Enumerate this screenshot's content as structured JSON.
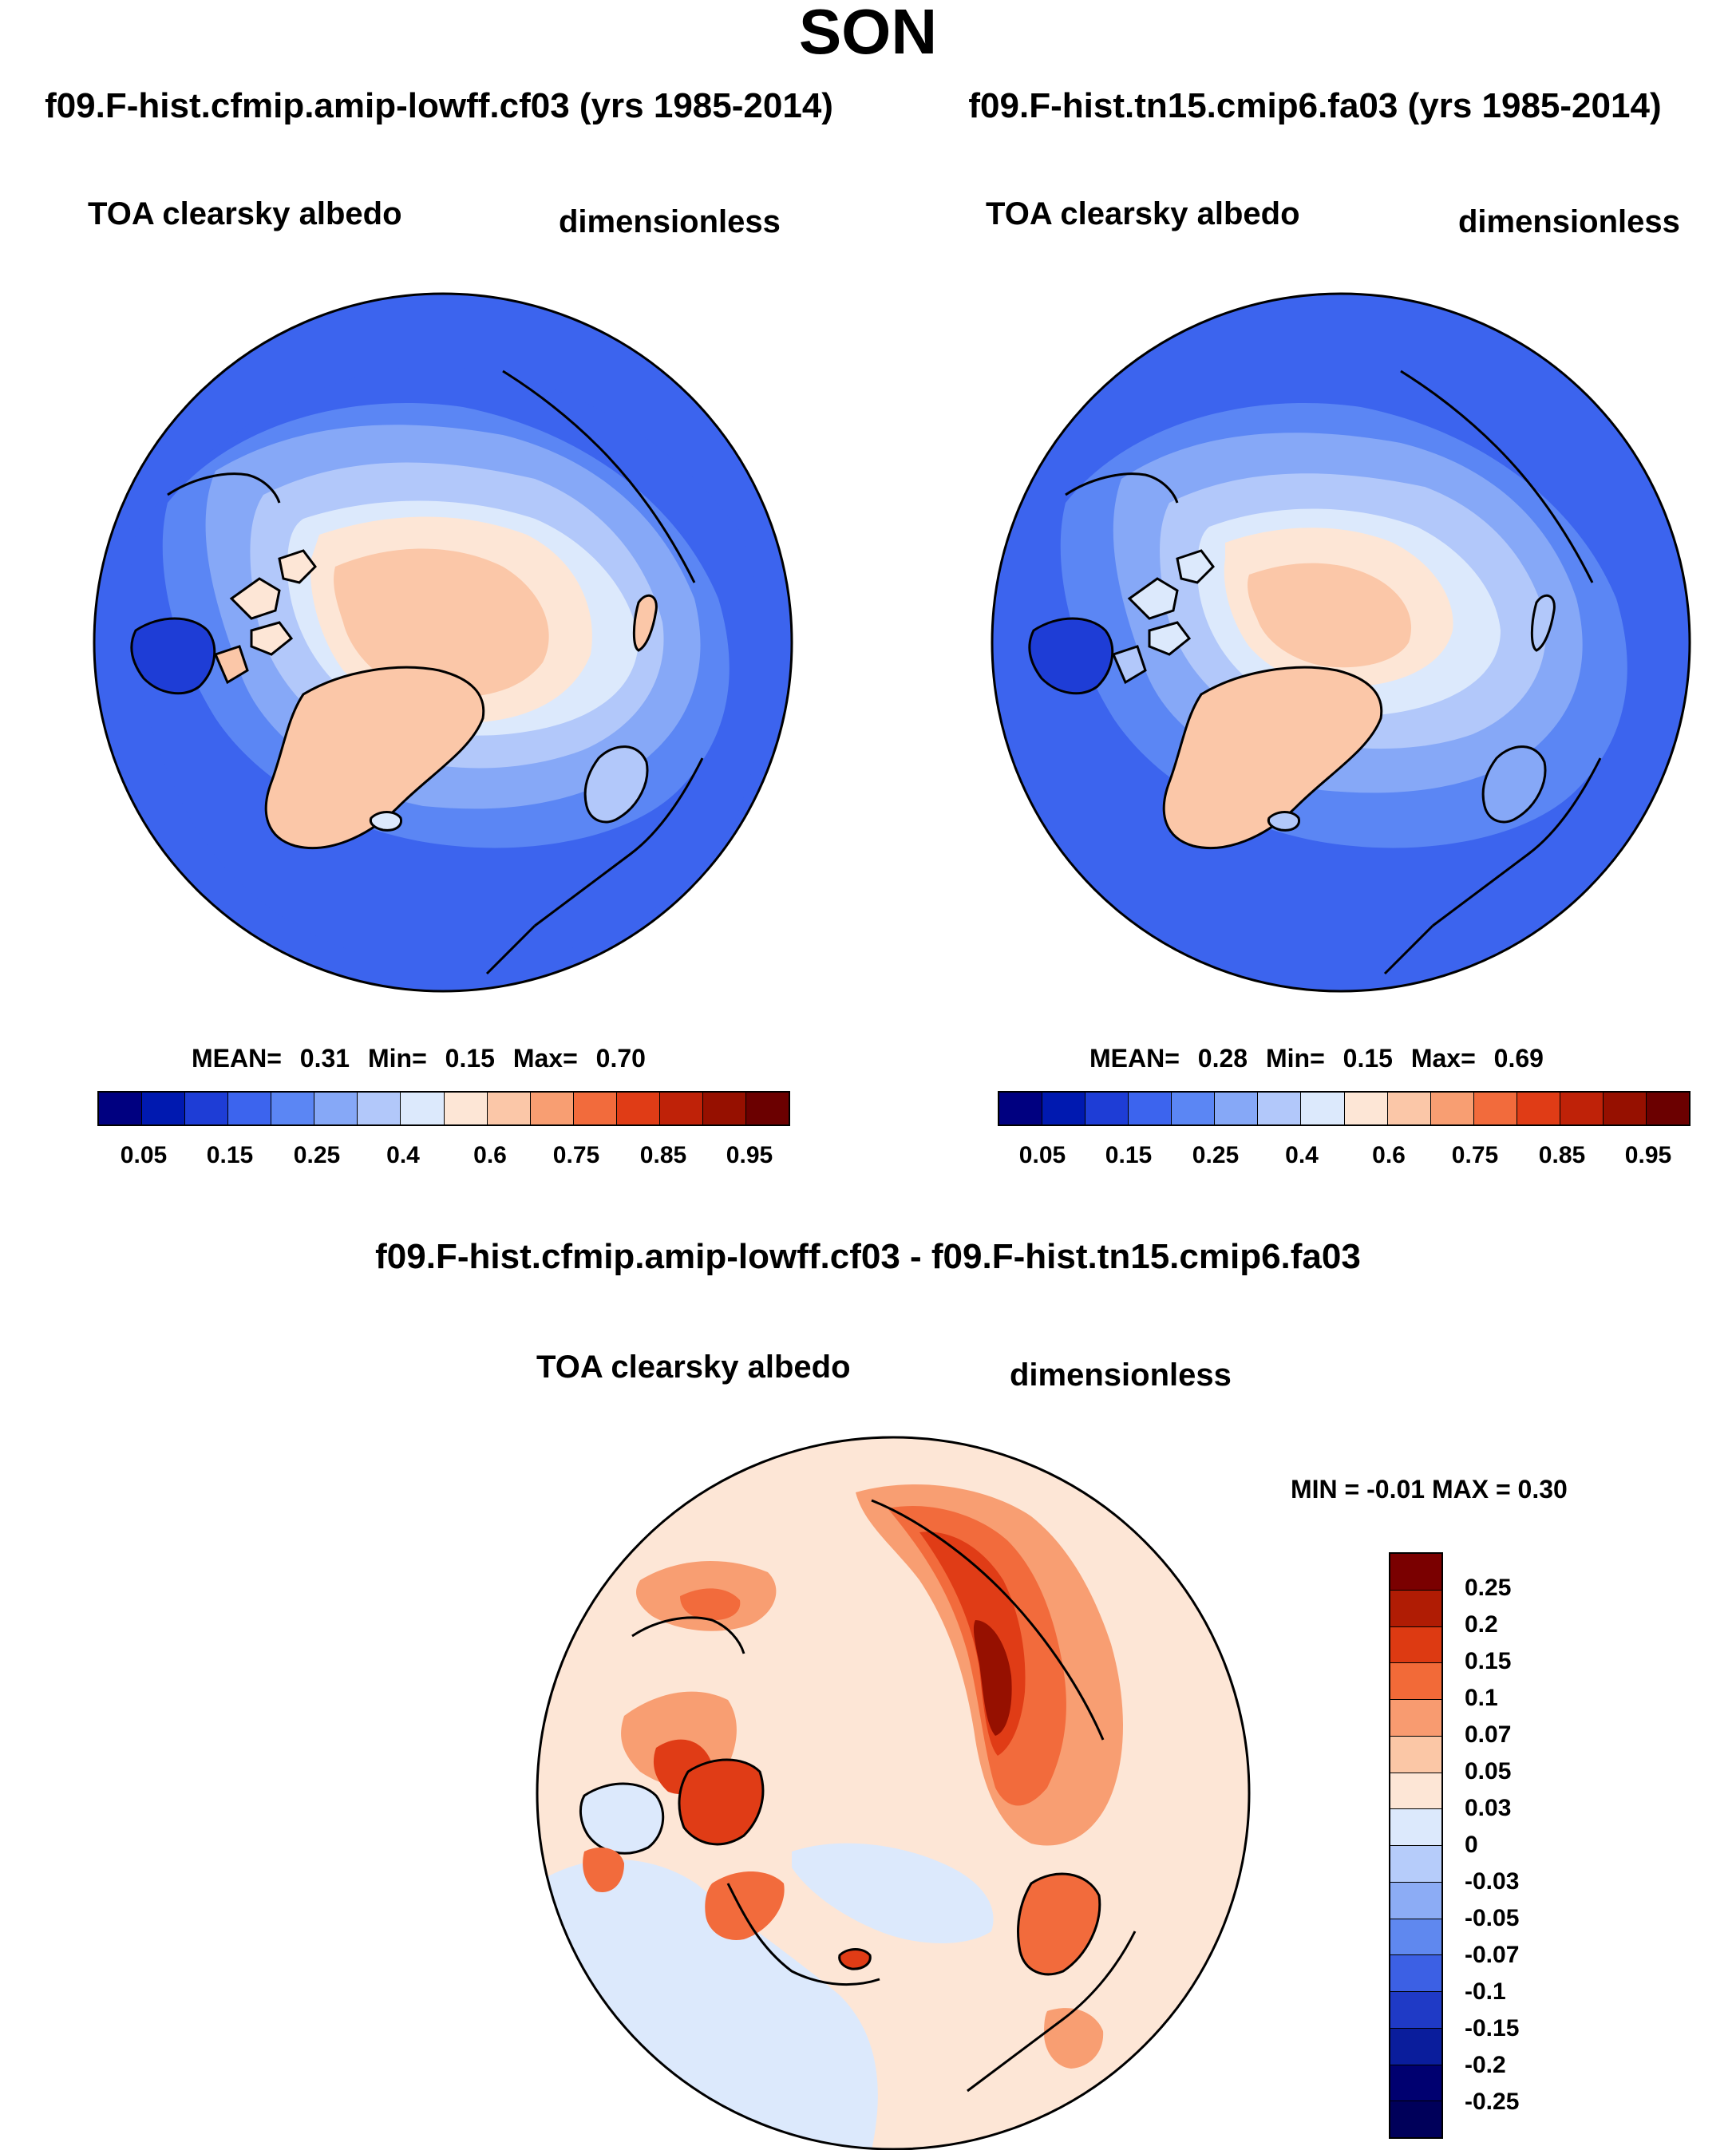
{
  "page": {
    "title": "SON"
  },
  "colors": {
    "seq": [
      "#000080",
      "#0019b0",
      "#1e3dd6",
      "#3c64ee",
      "#5b86f4",
      "#86a8f7",
      "#b2c8fa",
      "#dce9fc",
      "#fde6d6",
      "#fbc7a8",
      "#f89e72",
      "#f26b3c",
      "#e03c16",
      "#bf2208",
      "#961000",
      "#6b0000"
    ],
    "diff": [
      "#7a0000",
      "#b01c04",
      "#dd3a12",
      "#f26a38",
      "#f89b70",
      "#fbc7a6",
      "#fde6d6",
      "#dce9fc",
      "#b6ccfa",
      "#8cacf5",
      "#5f88ef",
      "#3c60e4",
      "#1f3ac6",
      "#0a1d9c",
      "#000070"
    ]
  },
  "panels": [
    {
      "title": "f09.F-hist.cfmip.amip-lowff.cf03 (yrs 1985-2014)",
      "variable": "TOA clearsky albedo",
      "units": "dimensionless",
      "stats": {
        "mean_label": "MEAN=",
        "mean": "0.31",
        "min_label": "Min=",
        "min": "0.15",
        "max_label": "Max=",
        "max": "0.70"
      },
      "colorbar_ticks": [
        "0.05",
        "0.15",
        "0.25",
        "0.4",
        "0.6",
        "0.75",
        "0.85",
        "0.95"
      ]
    },
    {
      "title": "f09.F-hist.tn15.cmip6.fa03 (yrs 1985-2014)",
      "variable": "TOA clearsky albedo",
      "units": "dimensionless",
      "stats": {
        "mean_label": "MEAN=",
        "mean": "0.28",
        "min_label": "Min=",
        "min": "0.15",
        "max_label": "Max=",
        "max": "0.69"
      },
      "colorbar_ticks": [
        "0.05",
        "0.15",
        "0.25",
        "0.4",
        "0.6",
        "0.75",
        "0.85",
        "0.95"
      ]
    }
  ],
  "difference": {
    "title": "f09.F-hist.cfmip.amip-lowff.cf03 - f09.F-hist.tn15.cmip6.fa03",
    "variable": "TOA clearsky albedo",
    "units": "dimensionless",
    "stats_text": "MIN = -0.01 MAX =  0.30",
    "colorbar_ticks": [
      "0.25",
      "0.2",
      "0.15",
      "0.1",
      "0.07",
      "0.05",
      "0.03",
      "0",
      "-0.03",
      "-0.05",
      "-0.07",
      "-0.1",
      "-0.15",
      "-0.2",
      "-0.25"
    ]
  }
}
